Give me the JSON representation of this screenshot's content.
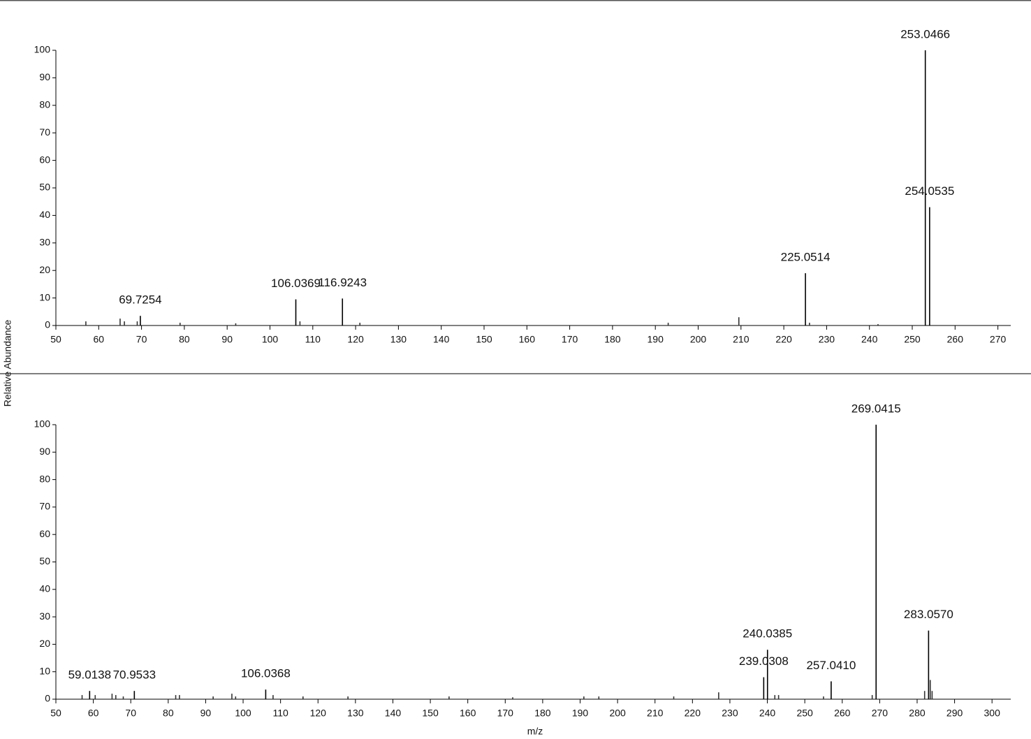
{
  "chart_data": [
    {
      "type": "stem",
      "ylabel": "Relative Abundance",
      "xlim": [
        50,
        273
      ],
      "ylim": [
        0,
        100
      ],
      "xticks": [
        50,
        60,
        70,
        80,
        90,
        100,
        110,
        120,
        130,
        140,
        150,
        160,
        170,
        180,
        190,
        200,
        210,
        220,
        230,
        240,
        250,
        260,
        270
      ],
      "yticks": [
        0,
        10,
        20,
        30,
        40,
        50,
        60,
        70,
        80,
        90,
        100
      ],
      "series": [
        {
          "color": "#000000",
          "x": [
            69.7254,
            106.0369,
            116.9243,
            225.0514,
            253.0466,
            254.0535
          ],
          "values": [
            3.5,
            9.5,
            9.8,
            19,
            100,
            43
          ],
          "x_labels": [
            "69.7254",
            "106.0369",
            "116.9243",
            "225.0514",
            "253.0466",
            "254.0535"
          ]
        },
        {
          "color": "#333333",
          "x": [
            57,
            65,
            66,
            69,
            79,
            92,
            107,
            121,
            193,
            209.5,
            226,
            242
          ],
          "values": [
            1.5,
            2.5,
            1.5,
            1.5,
            1,
            0.8,
            1.5,
            1,
            1,
            3,
            1,
            0.5
          ]
        }
      ]
    },
    {
      "type": "stem",
      "xlabel": "m/z",
      "xlim": [
        50,
        305
      ],
      "ylim": [
        0,
        100
      ],
      "xticks": [
        50,
        60,
        70,
        80,
        90,
        100,
        110,
        120,
        130,
        140,
        150,
        160,
        170,
        180,
        190,
        200,
        210,
        220,
        230,
        240,
        250,
        260,
        270,
        280,
        290,
        300
      ],
      "yticks": [
        0,
        10,
        20,
        30,
        40,
        50,
        60,
        70,
        80,
        90,
        100
      ],
      "series": [
        {
          "color": "#000000",
          "x": [
            59.0138,
            70.9533,
            106.0368,
            239.0308,
            240.0385,
            257.041,
            269.0415,
            283.057
          ],
          "values": [
            3,
            3,
            3.5,
            8,
            18,
            6.5,
            100,
            25
          ],
          "x_labels": [
            "59.0138",
            "70.9533",
            "106.0368",
            "239.0308",
            "240.0385",
            "257.0410",
            "269.0415",
            "283.0570"
          ]
        },
        {
          "color": "#333333",
          "x": [
            57,
            60.5,
            65,
            66,
            68,
            82,
            83,
            92,
            97,
            98,
            108,
            116,
            128,
            155,
            172,
            191,
            195,
            215,
            227,
            242,
            243,
            255,
            268,
            282,
            283.5,
            284
          ],
          "values": [
            1.5,
            1.5,
            2,
            1.5,
            1,
            1.5,
            1.5,
            1,
            2,
            1,
            1.5,
            1,
            1,
            1,
            0.7,
            1,
            1,
            1,
            2.5,
            1.5,
            1.5,
            1,
            1.5,
            3,
            7,
            3
          ]
        }
      ]
    }
  ]
}
